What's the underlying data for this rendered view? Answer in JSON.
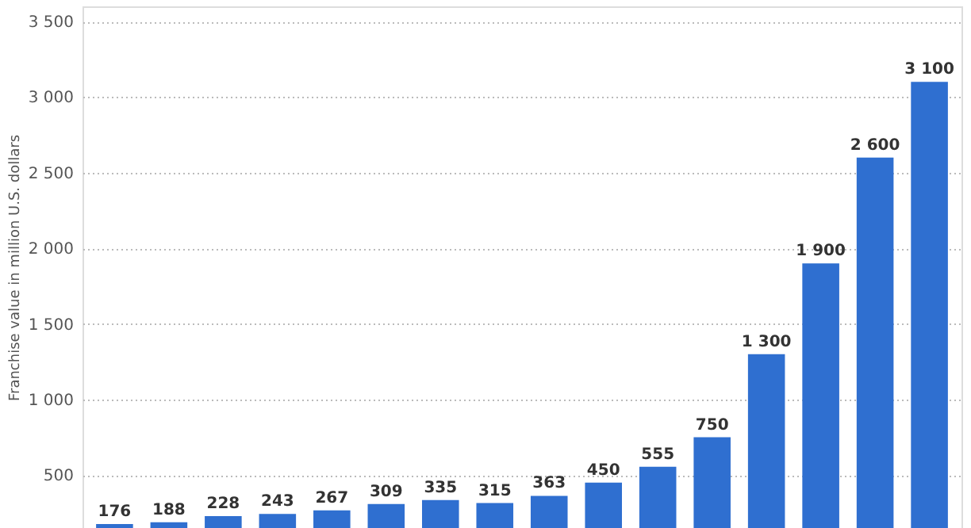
{
  "chart_data": {
    "type": "bar",
    "ylabel": "Franchise value in million U.S. dollars",
    "categories": [
      null,
      null,
      null,
      null,
      null,
      null,
      null,
      null,
      null,
      null,
      null,
      null,
      null,
      null,
      null,
      null
    ],
    "values": [
      176,
      188,
      228,
      243,
      267,
      309,
      335,
      315,
      363,
      450,
      555,
      750,
      1300,
      1900,
      2600,
      3100
    ],
    "value_labels": [
      "176",
      "188",
      "228",
      "243",
      "267",
      "309",
      "335",
      "315",
      "363",
      "450",
      "555",
      "750",
      "1 300",
      "1 900",
      "2 600",
      "3 100"
    ],
    "color": "#2f6fd0",
    "ylim": [
      150,
      3600
    ],
    "yticks": [
      {
        "value": 500,
        "label": "500"
      },
      {
        "value": 1000,
        "label": "1 000"
      },
      {
        "value": 1500,
        "label": "1 500"
      },
      {
        "value": 2000,
        "label": "2 000"
      },
      {
        "value": 2500,
        "label": "2 500"
      },
      {
        "value": 3000,
        "label": "3 000"
      },
      {
        "value": 3500,
        "label": "3 500"
      }
    ],
    "grid": "y",
    "tick_labels": "y"
  }
}
